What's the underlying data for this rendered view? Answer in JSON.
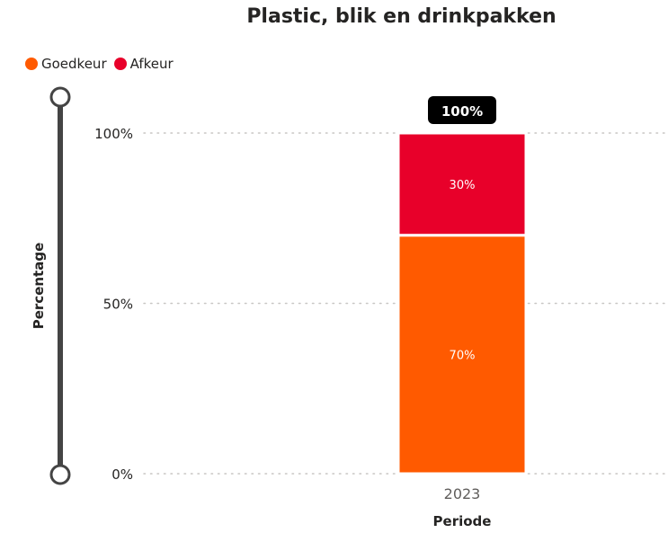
{
  "chart_data": {
    "type": "bar",
    "stacked": true,
    "title": "Plastic, blik en drinkpakken",
    "xlabel": "Periode",
    "ylabel": "Percentage",
    "categories": [
      "2023"
    ],
    "series": [
      {
        "name": "Goedkeur",
        "values": [
          70
        ],
        "color": "#ff5a00",
        "labels": [
          "70%"
        ]
      },
      {
        "name": "Afkeur",
        "values": [
          30
        ],
        "color": "#e8002a",
        "labels": [
          "30%"
        ]
      }
    ],
    "totals": [
      "100%"
    ],
    "ylim": [
      0,
      100
    ],
    "yticks": [
      {
        "value": 0,
        "label": "0%"
      },
      {
        "value": 50,
        "label": "50%"
      },
      {
        "value": 100,
        "label": "100%"
      }
    ],
    "grid": true,
    "legend_position": "top-left"
  }
}
